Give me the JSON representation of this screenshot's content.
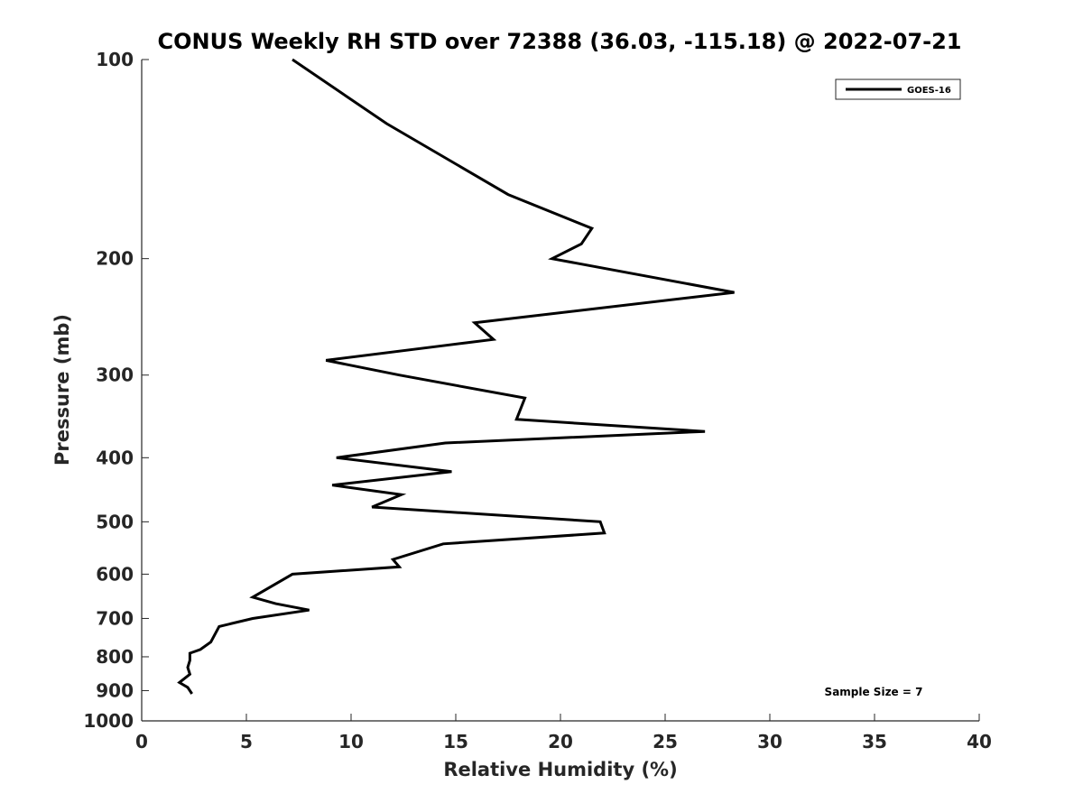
{
  "chart_data": {
    "type": "line",
    "title": "CONUS Weekly RH STD over 72388 (36.03, -115.18) @ 2022-07-21",
    "xlabel": "Relative Humidity (%)",
    "ylabel": "Pressure (mb)",
    "xlim": [
      0,
      40
    ],
    "ylim": [
      100,
      1000
    ],
    "y_scale": "log",
    "y_reversed": true,
    "grid": false,
    "legend_position": "top-right",
    "xticks": [
      "0",
      "5",
      "10",
      "15",
      "20",
      "25",
      "30",
      "35",
      "40"
    ],
    "yticks": [
      "100",
      "200",
      "300",
      "400",
      "500",
      "600",
      "700",
      "800",
      "900",
      "1000"
    ],
    "annotation": "Sample Size = 7",
    "series": [
      {
        "name": "GOES-16",
        "color": "#000000",
        "points": [
          [
            7.2,
            100
          ],
          [
            11.7,
            125
          ],
          [
            17.5,
            160
          ],
          [
            21.5,
            180
          ],
          [
            21.0,
            190
          ],
          [
            19.6,
            200
          ],
          [
            28.3,
            225
          ],
          [
            15.9,
            250
          ],
          [
            16.8,
            265
          ],
          [
            8.8,
            285
          ],
          [
            12.3,
            300
          ],
          [
            18.3,
            325
          ],
          [
            17.9,
            350
          ],
          [
            26.9,
            365
          ],
          [
            14.5,
            380
          ],
          [
            9.3,
            400
          ],
          [
            14.8,
            420
          ],
          [
            9.1,
            440
          ],
          [
            12.4,
            455
          ],
          [
            11.0,
            475
          ],
          [
            21.9,
            500
          ],
          [
            22.1,
            520
          ],
          [
            14.4,
            540
          ],
          [
            12.0,
            570
          ],
          [
            12.3,
            585
          ],
          [
            7.2,
            600
          ],
          [
            5.3,
            650
          ],
          [
            6.4,
            665
          ],
          [
            8.0,
            680
          ],
          [
            5.3,
            700
          ],
          [
            3.7,
            720
          ],
          [
            3.3,
            760
          ],
          [
            2.8,
            780
          ],
          [
            2.3,
            790
          ],
          [
            2.3,
            810
          ],
          [
            2.2,
            830
          ],
          [
            2.3,
            850
          ],
          [
            1.8,
            875
          ],
          [
            2.2,
            890
          ],
          [
            2.4,
            910
          ]
        ]
      }
    ]
  }
}
